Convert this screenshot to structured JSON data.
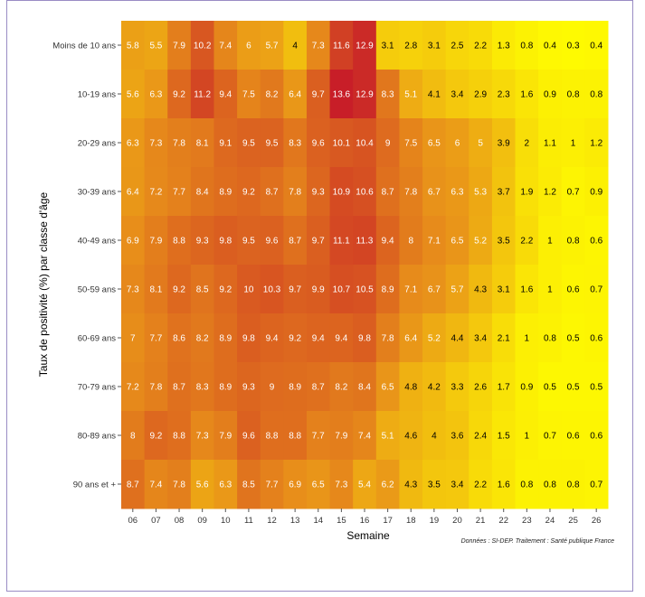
{
  "chart_data": {
    "type": "heatmap",
    "xlabel": "Semaine",
    "ylabel": "Taux de positivité (%) par classe d'âge",
    "source": "Données : SI-DEP. Traitement : Santé publique France",
    "x": [
      "06",
      "07",
      "08",
      "09",
      "10",
      "11",
      "12",
      "13",
      "14",
      "15",
      "16",
      "17",
      "18",
      "19",
      "20",
      "21",
      "22",
      "23",
      "24",
      "25",
      "26"
    ],
    "y": [
      "Moins de 10 ans",
      "10-19 ans",
      "20-29 ans",
      "30-39 ans",
      "40-49 ans",
      "50-59 ans",
      "60-69 ans",
      "70-79 ans",
      "80-89 ans",
      "90 ans et +"
    ],
    "values": [
      [
        5.8,
        5.5,
        7.9,
        10.2,
        7.4,
        6,
        5.7,
        4,
        7.3,
        11.6,
        12.9,
        3.1,
        2.8,
        3.1,
        2.5,
        2.2,
        1.3,
        0.8,
        0.4,
        0.3,
        0.4
      ],
      [
        5.6,
        6.3,
        9.2,
        11.2,
        9.4,
        7.5,
        8.2,
        6.4,
        9.7,
        13.6,
        12.9,
        8.3,
        5.1,
        4.1,
        3.4,
        2.9,
        2.3,
        1.6,
        0.9,
        0.8,
        0.8
      ],
      [
        6.3,
        7.3,
        7.8,
        8.1,
        9.1,
        9.5,
        9.5,
        8.3,
        9.6,
        10.1,
        10.4,
        9,
        7.5,
        6.5,
        6,
        5,
        3.9,
        2,
        1.1,
        1,
        1.2
      ],
      [
        6.4,
        7.2,
        7.7,
        8.4,
        8.9,
        9.2,
        8.7,
        7.8,
        9.3,
        10.9,
        10.6,
        8.7,
        7.8,
        6.7,
        6.3,
        5.3,
        3.7,
        1.9,
        1.2,
        0.7,
        0.9
      ],
      [
        6.9,
        7.9,
        8.8,
        9.3,
        9.8,
        9.5,
        9.6,
        8.7,
        9.7,
        11.1,
        11.3,
        9.4,
        8,
        7.1,
        6.5,
        5.2,
        3.5,
        2.2,
        1,
        0.8,
        0.6
      ],
      [
        7.3,
        8.1,
        9.2,
        8.5,
        9.2,
        10,
        10.3,
        9.7,
        9.9,
        10.7,
        10.5,
        8.9,
        7.1,
        6.7,
        5.7,
        4.3,
        3.1,
        1.6,
        1,
        0.6,
        0.7
      ],
      [
        7,
        7.7,
        8.6,
        8.2,
        8.9,
        9.8,
        9.4,
        9.2,
        9.4,
        9.4,
        9.8,
        7.8,
        6.4,
        5.2,
        4.4,
        3.4,
        2.1,
        1,
        0.8,
        0.5,
        0.6
      ],
      [
        7.2,
        7.8,
        8.7,
        8.3,
        8.9,
        9.3,
        9,
        8.9,
        8.7,
        8.2,
        8.4,
        6.5,
        4.8,
        4.2,
        3.3,
        2.6,
        1.7,
        0.9,
        0.5,
        0.5,
        0.5
      ],
      [
        8,
        9.2,
        8.8,
        7.3,
        7.9,
        9.6,
        8.8,
        8.8,
        7.7,
        7.9,
        7.4,
        5.1,
        4.6,
        4,
        3.6,
        2.4,
        1.5,
        1,
        0.7,
        0.6,
        0.6
      ],
      [
        8.7,
        7.4,
        7.8,
        5.6,
        6.3,
        8.5,
        7.7,
        6.9,
        6.5,
        7.3,
        5.4,
        6.2,
        4.3,
        3.5,
        3.4,
        2.2,
        1.6,
        0.8,
        0.8,
        0.8,
        0.7
      ]
    ],
    "color_scale": {
      "low": "#ffff00",
      "mid": "#e8901a",
      "high": "#c81e28",
      "max": 13.6
    },
    "legend": "none",
    "grid": false
  }
}
